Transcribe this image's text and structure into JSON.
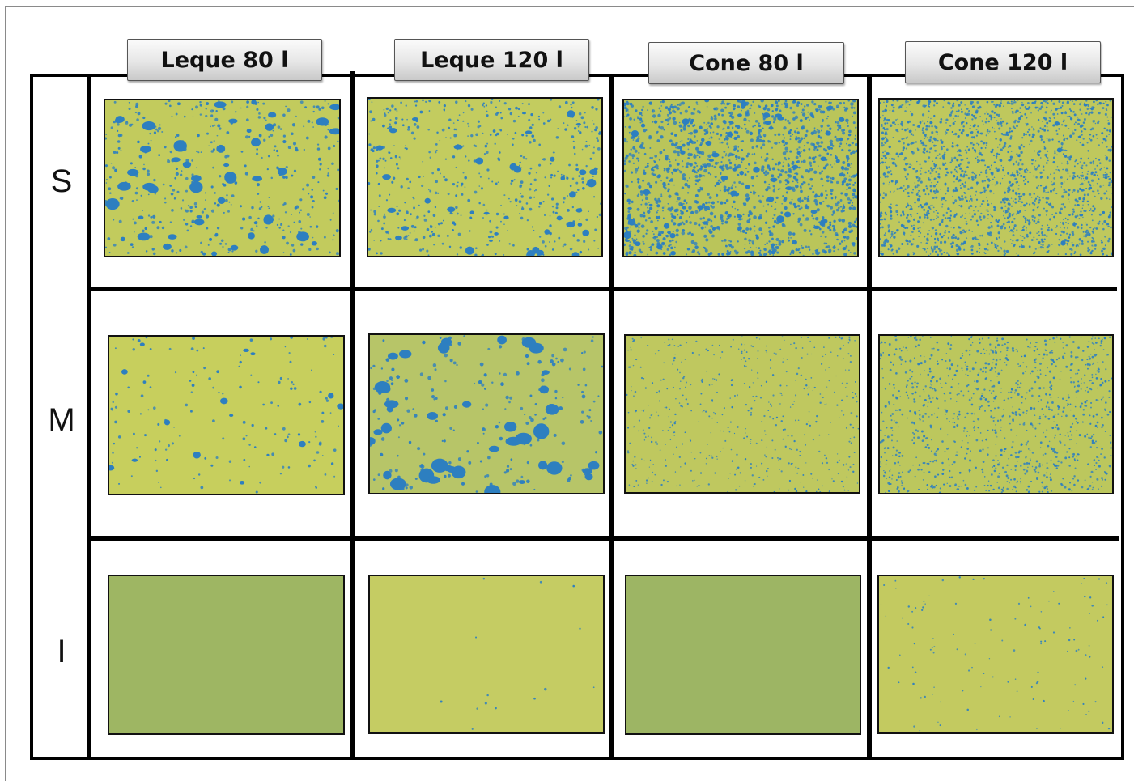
{
  "columns": [
    "Leque 80 l",
    "Leque 120 l",
    "Cone 80 l",
    "Cone 120 l"
  ],
  "rows": [
    "S",
    "M",
    "I"
  ],
  "colors": {
    "card_yellow": "#d2d45a",
    "card_greenish": "#a9bd60",
    "droplet_blue": "#2d7fc0"
  },
  "cards": [
    {
      "row": "S",
      "column": "Leque 80 l",
      "coverage": "medium",
      "droplet_size": "large",
      "base": "#cfd35c"
    },
    {
      "row": "S",
      "column": "Leque 120 l",
      "coverage": "medium",
      "droplet_size": "medium",
      "base": "#d0d45e"
    },
    {
      "row": "S",
      "column": "Cone 80 l",
      "coverage": "high",
      "droplet_size": "small",
      "base": "#c6cc58"
    },
    {
      "row": "S",
      "column": "Cone 120 l",
      "coverage": "high",
      "droplet_size": "fine",
      "base": "#cbd05c"
    },
    {
      "row": "M",
      "column": "Leque 80 l",
      "coverage": "low",
      "droplet_size": "small",
      "base": "#d4d75c"
    },
    {
      "row": "M",
      "column": "Leque 120 l",
      "coverage": "medium",
      "droplet_size": "large-round",
      "base": "#c2cc68"
    },
    {
      "row": "M",
      "column": "Cone 80 l",
      "coverage": "low",
      "droplet_size": "fine",
      "base": "#cbd05e"
    },
    {
      "row": "M",
      "column": "Cone 120 l",
      "coverage": "medium",
      "droplet_size": "fine",
      "base": "#c8ce5c"
    },
    {
      "row": "I",
      "column": "Leque 80 l",
      "coverage": "none",
      "droplet_size": "none",
      "base": "#a6bb62"
    },
    {
      "row": "I",
      "column": "Leque 120 l",
      "coverage": "trace",
      "droplet_size": "fine",
      "base": "#d2d463"
    },
    {
      "row": "I",
      "column": "Cone 80 l",
      "coverage": "none",
      "droplet_size": "none",
      "base": "#a5ba64"
    },
    {
      "row": "I",
      "column": "Cone 120 l",
      "coverage": "very-low",
      "droplet_size": "fine",
      "base": "#d0d25f"
    }
  ]
}
